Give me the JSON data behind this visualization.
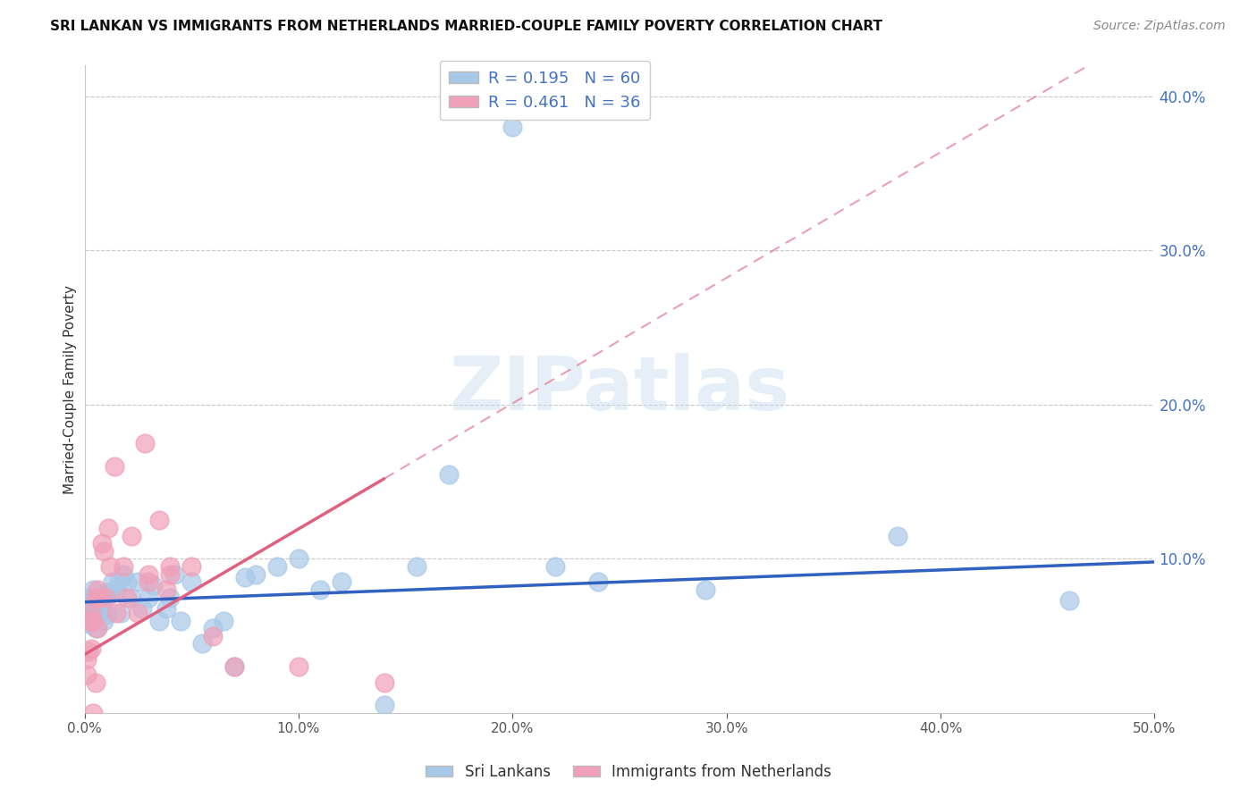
{
  "title": "SRI LANKAN VS IMMIGRANTS FROM NETHERLANDS MARRIED-COUPLE FAMILY POVERTY CORRELATION CHART",
  "source": "Source: ZipAtlas.com",
  "ylabel": "Married-Couple Family Poverty",
  "series1_label": "Sri Lankans",
  "series2_label": "Immigrants from Netherlands",
  "series1_color": "#a8c8e8",
  "series2_color": "#f0a0b8",
  "series1_line_color": "#3060c0",
  "series2_line_color": "#e06080",
  "R1": 0.195,
  "N1": 60,
  "R2": 0.461,
  "N2": 36,
  "xlim": [
    0.0,
    0.5
  ],
  "ylim": [
    0.0,
    0.42
  ],
  "xticks": [
    0.0,
    0.1,
    0.2,
    0.3,
    0.4,
    0.5
  ],
  "yticks_right": [
    0.1,
    0.2,
    0.3,
    0.4
  ],
  "watermark": "ZIPatlas",
  "series1_x": [
    0.001,
    0.001,
    0.002,
    0.002,
    0.002,
    0.003,
    0.003,
    0.003,
    0.004,
    0.004,
    0.004,
    0.005,
    0.005,
    0.006,
    0.006,
    0.007,
    0.007,
    0.008,
    0.008,
    0.009,
    0.01,
    0.01,
    0.011,
    0.012,
    0.013,
    0.015,
    0.016,
    0.017,
    0.018,
    0.02,
    0.022,
    0.025,
    0.027,
    0.03,
    0.032,
    0.035,
    0.038,
    0.04,
    0.042,
    0.045,
    0.05,
    0.055,
    0.06,
    0.065,
    0.07,
    0.075,
    0.08,
    0.09,
    0.1,
    0.11,
    0.12,
    0.14,
    0.155,
    0.17,
    0.2,
    0.22,
    0.24,
    0.29,
    0.38,
    0.46
  ],
  "series1_y": [
    0.07,
    0.06,
    0.075,
    0.065,
    0.058,
    0.072,
    0.068,
    0.06,
    0.075,
    0.062,
    0.08,
    0.07,
    0.055,
    0.068,
    0.063,
    0.071,
    0.065,
    0.073,
    0.069,
    0.06,
    0.078,
    0.064,
    0.078,
    0.078,
    0.085,
    0.08,
    0.085,
    0.065,
    0.09,
    0.085,
    0.075,
    0.085,
    0.068,
    0.075,
    0.083,
    0.06,
    0.068,
    0.075,
    0.09,
    0.06,
    0.085,
    0.045,
    0.055,
    0.06,
    0.03,
    0.088,
    0.09,
    0.095,
    0.1,
    0.08,
    0.085,
    0.005,
    0.095,
    0.155,
    0.38,
    0.095,
    0.085,
    0.08,
    0.115,
    0.073
  ],
  "series2_x": [
    0.001,
    0.001,
    0.002,
    0.002,
    0.003,
    0.003,
    0.004,
    0.004,
    0.005,
    0.005,
    0.006,
    0.006,
    0.007,
    0.008,
    0.009,
    0.01,
    0.011,
    0.012,
    0.014,
    0.015,
    0.018,
    0.02,
    0.022,
    0.025,
    0.028,
    0.03,
    0.03,
    0.035,
    0.038,
    0.04,
    0.04,
    0.05,
    0.06,
    0.07,
    0.1,
    0.14
  ],
  "series2_y": [
    0.035,
    0.025,
    0.04,
    0.06,
    0.042,
    0.065,
    0.06,
    0.0,
    0.075,
    0.02,
    0.055,
    0.08,
    0.075,
    0.11,
    0.105,
    0.075,
    0.12,
    0.095,
    0.16,
    0.065,
    0.095,
    0.075,
    0.115,
    0.065,
    0.175,
    0.085,
    0.09,
    0.125,
    0.08,
    0.095,
    0.09,
    0.095,
    0.05,
    0.03,
    0.03,
    0.02
  ],
  "trendline1_x0": 0.0,
  "trendline1_y0": 0.072,
  "trendline1_x1": 0.5,
  "trendline1_y1": 0.098,
  "trendline2_x0": 0.0,
  "trendline2_y0": 0.038,
  "trendline2_x1": 0.14,
  "trendline2_y1": 0.152
}
